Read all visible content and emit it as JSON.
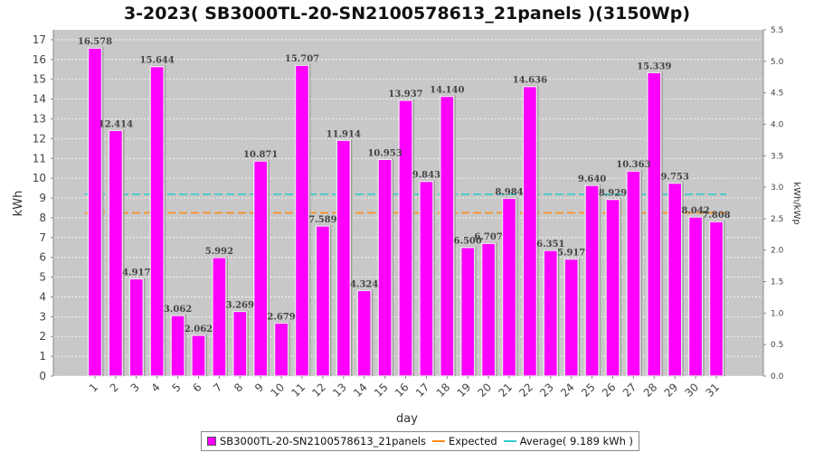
{
  "chart_data": {
    "type": "bar",
    "title": "3-2023( SB3000TL-20-SN2100578613_21panels )(3150Wp)",
    "xlabel": "day",
    "ylabel": "kWh",
    "y2label": "kWh/kWp",
    "ylim": [
      0,
      17.5
    ],
    "y2lim": [
      0,
      5.5
    ],
    "yticks": [
      "0",
      "1",
      "2",
      "3",
      "4",
      "5",
      "6",
      "7",
      "8",
      "9",
      "10",
      "11",
      "12",
      "13",
      "14",
      "15",
      "16",
      "17"
    ],
    "y2ticks": [
      "0.0",
      "0.5",
      "1.0",
      "1.5",
      "2.0",
      "2.5",
      "3.0",
      "3.5",
      "4.0",
      "4.5",
      "5.0",
      "5.5"
    ],
    "categories": [
      "1",
      "2",
      "3",
      "4",
      "5",
      "6",
      "7",
      "8",
      "9",
      "10",
      "11",
      "12",
      "13",
      "14",
      "15",
      "16",
      "17",
      "18",
      "19",
      "20",
      "21",
      "22",
      "23",
      "24",
      "25",
      "26",
      "27",
      "28",
      "29",
      "30",
      "31"
    ],
    "series": [
      {
        "name": "SB3000TL-20-SN2100578613_21panels",
        "color": "#ff00ff",
        "values": [
          16.578,
          12.414,
          4.917,
          15.644,
          3.062,
          2.062,
          5.992,
          3.269,
          10.871,
          2.679,
          15.707,
          7.589,
          11.914,
          4.324,
          10.953,
          13.937,
          9.843,
          14.14,
          6.5,
          6.707,
          8.984,
          14.636,
          6.351,
          5.917,
          9.64,
          8.929,
          10.363,
          15.339,
          9.753,
          8.042,
          7.808
        ],
        "labels": [
          "16.578",
          "12.414",
          "4.917",
          "15.644",
          "3.062",
          "2.062",
          "5.992",
          "3.269",
          "10.871",
          "2.679",
          "15.707",
          "7.589",
          "11.914",
          "4.324",
          "10.953",
          "13.937",
          "9.843",
          "14.140",
          "6.500",
          "6.707",
          "8.984",
          "14.636",
          "6.351",
          "5.917",
          "9.640",
          "8.929",
          "10.363",
          "15.339",
          "9.753",
          "8.042",
          "7.808"
        ]
      }
    ],
    "reference_lines": [
      {
        "name": "Expected",
        "value": 8.25,
        "color": "#ff8c1a"
      },
      {
        "name": "Average( 9.189 kWh )",
        "value": 9.189,
        "color": "#33cccc"
      }
    ],
    "grid": true,
    "legend_position": "bottom-center"
  }
}
